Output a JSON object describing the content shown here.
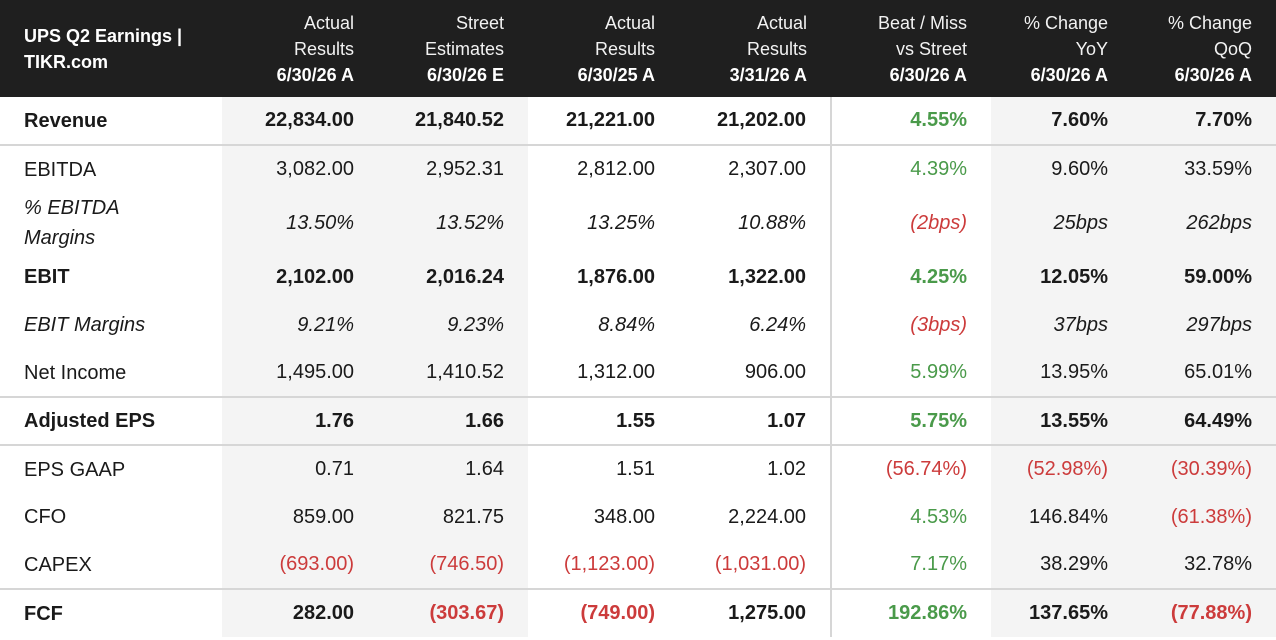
{
  "title_line1": "UPS Q2 Earnings |",
  "title_line2": "TIKR.com",
  "colors": {
    "header_bg": "#1f1f1f",
    "positive": "#4a9a4a",
    "negative": "#cc3b3b",
    "shade": "#f4f4f4"
  },
  "columns": [
    {
      "l1": "Actual",
      "l2": "Results",
      "l3": "6/30/26 A"
    },
    {
      "l1": "Street",
      "l2": "Estimates",
      "l3": "6/30/26 E"
    },
    {
      "l1": "Actual",
      "l2": "Results",
      "l3": "6/30/25 A"
    },
    {
      "l1": "Actual",
      "l2": "Results",
      "l3": "3/31/26 A"
    },
    {
      "l1": "Beat / Miss",
      "l2": "vs Street",
      "l3": "6/30/26 A"
    },
    {
      "l1": "% Change",
      "l2": "YoY",
      "l3": "6/30/26 A"
    },
    {
      "l1": "% Change",
      "l2": "QoQ",
      "l3": "6/30/26 A"
    }
  ],
  "rows": [
    {
      "label": "Revenue",
      "style": "bold",
      "cells": [
        {
          "v": "22,834.00",
          "t": ""
        },
        {
          "v": "21,840.52",
          "t": ""
        },
        {
          "v": "21,221.00",
          "t": ""
        },
        {
          "v": "21,202.00",
          "t": ""
        },
        {
          "v": "4.55%",
          "t": "pos"
        },
        {
          "v": "7.60%",
          "t": ""
        },
        {
          "v": "7.70%",
          "t": ""
        }
      ]
    },
    {
      "label": "EBITDA",
      "style": "",
      "cells": [
        {
          "v": "3,082.00",
          "t": ""
        },
        {
          "v": "2,952.31",
          "t": ""
        },
        {
          "v": "2,812.00",
          "t": ""
        },
        {
          "v": "2,307.00",
          "t": ""
        },
        {
          "v": "4.39%",
          "t": "pos"
        },
        {
          "v": "9.60%",
          "t": ""
        },
        {
          "v": "33.59%",
          "t": ""
        }
      ]
    },
    {
      "label": "% EBITDA Margins",
      "style": "italic",
      "cells": [
        {
          "v": "13.50%",
          "t": ""
        },
        {
          "v": "13.52%",
          "t": ""
        },
        {
          "v": "13.25%",
          "t": ""
        },
        {
          "v": "10.88%",
          "t": ""
        },
        {
          "v": "(2bps)",
          "t": "neg"
        },
        {
          "v": "25bps",
          "t": ""
        },
        {
          "v": "262bps",
          "t": ""
        }
      ]
    },
    {
      "label": "EBIT",
      "style": "bold",
      "cells": [
        {
          "v": "2,102.00",
          "t": ""
        },
        {
          "v": "2,016.24",
          "t": ""
        },
        {
          "v": "1,876.00",
          "t": ""
        },
        {
          "v": "1,322.00",
          "t": ""
        },
        {
          "v": "4.25%",
          "t": "pos"
        },
        {
          "v": "12.05%",
          "t": ""
        },
        {
          "v": "59.00%",
          "t": ""
        }
      ]
    },
    {
      "label": "EBIT Margins",
      "style": "italic",
      "cells": [
        {
          "v": "9.21%",
          "t": ""
        },
        {
          "v": "9.23%",
          "t": ""
        },
        {
          "v": "8.84%",
          "t": ""
        },
        {
          "v": "6.24%",
          "t": ""
        },
        {
          "v": "(3bps)",
          "t": "neg"
        },
        {
          "v": "37bps",
          "t": ""
        },
        {
          "v": "297bps",
          "t": ""
        }
      ]
    },
    {
      "label": "Net Income",
      "style": "",
      "cells": [
        {
          "v": "1,495.00",
          "t": ""
        },
        {
          "v": "1,410.52",
          "t": ""
        },
        {
          "v": "1,312.00",
          "t": ""
        },
        {
          "v": "906.00",
          "t": ""
        },
        {
          "v": "5.99%",
          "t": "pos"
        },
        {
          "v": "13.95%",
          "t": ""
        },
        {
          "v": "65.01%",
          "t": ""
        }
      ]
    },
    {
      "label": "Adjusted EPS",
      "style": "bold",
      "cells": [
        {
          "v": "1.76",
          "t": ""
        },
        {
          "v": "1.66",
          "t": ""
        },
        {
          "v": "1.55",
          "t": ""
        },
        {
          "v": "1.07",
          "t": ""
        },
        {
          "v": "5.75%",
          "t": "pos"
        },
        {
          "v": "13.55%",
          "t": ""
        },
        {
          "v": "64.49%",
          "t": ""
        }
      ]
    },
    {
      "label": "EPS GAAP",
      "style": "",
      "cells": [
        {
          "v": "0.71",
          "t": ""
        },
        {
          "v": "1.64",
          "t": ""
        },
        {
          "v": "1.51",
          "t": ""
        },
        {
          "v": "1.02",
          "t": ""
        },
        {
          "v": "(56.74%)",
          "t": "neg"
        },
        {
          "v": "(52.98%)",
          "t": "neg"
        },
        {
          "v": "(30.39%)",
          "t": "neg"
        }
      ]
    },
    {
      "label": "CFO",
      "style": "",
      "cells": [
        {
          "v": "859.00",
          "t": ""
        },
        {
          "v": "821.75",
          "t": ""
        },
        {
          "v": "348.00",
          "t": ""
        },
        {
          "v": "2,224.00",
          "t": ""
        },
        {
          "v": "4.53%",
          "t": "pos"
        },
        {
          "v": "146.84%",
          "t": ""
        },
        {
          "v": "(61.38%)",
          "t": "neg"
        }
      ]
    },
    {
      "label": "CAPEX",
      "style": "",
      "cells": [
        {
          "v": "(693.00)",
          "t": "neg"
        },
        {
          "v": "(746.50)",
          "t": "neg"
        },
        {
          "v": "(1,123.00)",
          "t": "neg"
        },
        {
          "v": "(1,031.00)",
          "t": "neg"
        },
        {
          "v": "7.17%",
          "t": "pos"
        },
        {
          "v": "38.29%",
          "t": ""
        },
        {
          "v": "32.78%",
          "t": ""
        }
      ]
    },
    {
      "label": "FCF",
      "style": "bold",
      "cells": [
        {
          "v": "282.00",
          "t": ""
        },
        {
          "v": "(303.67)",
          "t": "neg"
        },
        {
          "v": "(749.00)",
          "t": "neg"
        },
        {
          "v": "1,275.00",
          "t": ""
        },
        {
          "v": "192.86%",
          "t": "pos"
        },
        {
          "v": "137.65%",
          "t": ""
        },
        {
          "v": "(77.88%)",
          "t": "neg"
        }
      ]
    }
  ]
}
